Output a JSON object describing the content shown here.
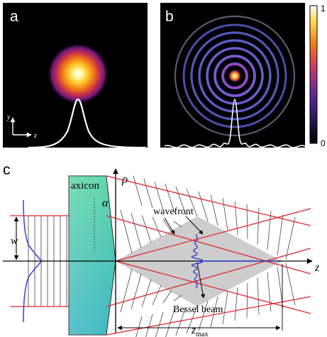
{
  "panels": {
    "a": {
      "label": "a",
      "axis_y": "y",
      "axis_z": "z"
    },
    "b": {
      "label": "b",
      "colorbar_max": "1",
      "colorbar_min": "0"
    },
    "c": {
      "label": "c",
      "axicon": "axicon",
      "alpha": "α",
      "rho": "ρ",
      "wavefront": "wavefront",
      "w": "w",
      "z": "z",
      "bessel_beam": "Bessel beam",
      "zmax_main": "z",
      "zmax_sub": "max"
    }
  },
  "colors": {
    "panel_bg": "#000000",
    "profile_curve": "#ffffff",
    "ray": "#e0272a",
    "axicon_top": "#5fd6a8",
    "axicon_bottom": "#3eb7c4",
    "gaussian_profile": "#3a4bd6",
    "bessel_profile": "#2f43c8",
    "cone_fill": "#c8c8c8"
  }
}
